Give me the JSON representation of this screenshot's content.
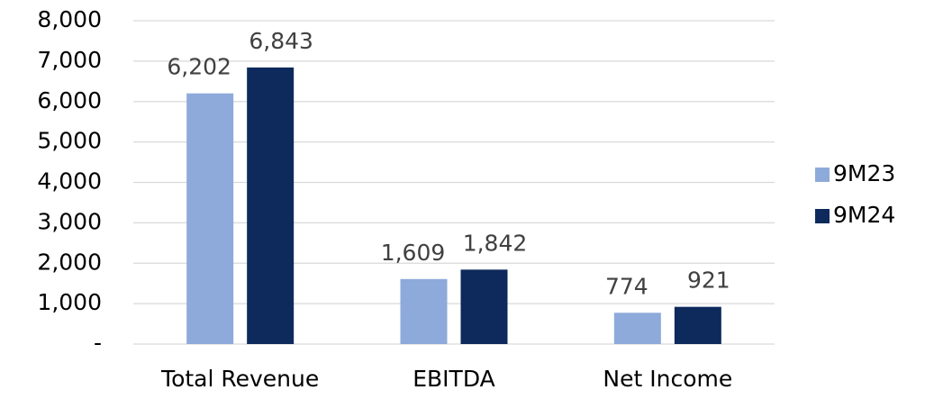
{
  "chart_data": {
    "type": "bar",
    "categories": [
      "Total Revenue",
      "EBITDA",
      "Net Income"
    ],
    "series": [
      {
        "name": "9M23",
        "color": "#8eaadb",
        "values": [
          6202,
          1609,
          774
        ],
        "value_labels": [
          "6,202",
          "1,609",
          "774"
        ]
      },
      {
        "name": "9M24",
        "color": "#0e2a5c",
        "values": [
          6843,
          1842,
          921
        ],
        "value_labels": [
          "6,843",
          "1,842",
          "921"
        ]
      }
    ],
    "ylim": [
      0,
      8000
    ],
    "yticks": [
      {
        "value": 0,
        "label": "-"
      },
      {
        "value": 1000,
        "label": "1,000"
      },
      {
        "value": 2000,
        "label": "2,000"
      },
      {
        "value": 3000,
        "label": "3,000"
      },
      {
        "value": 4000,
        "label": "4,000"
      },
      {
        "value": 5000,
        "label": "5,000"
      },
      {
        "value": 6000,
        "label": "6,000"
      },
      {
        "value": 7000,
        "label": "7,000"
      },
      {
        "value": 8000,
        "label": "8,000"
      }
    ],
    "grid": true,
    "legend": "right"
  }
}
